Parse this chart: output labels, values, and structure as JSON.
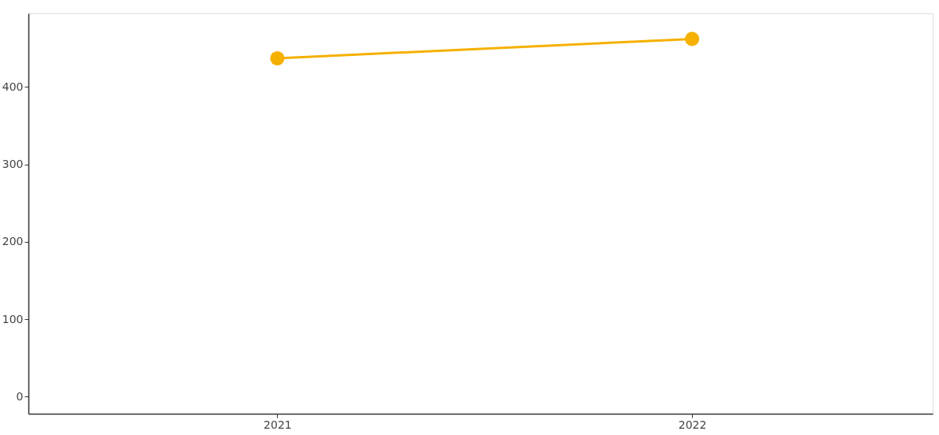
{
  "chart_data": {
    "type": "line",
    "categories": [
      "2021",
      "2022"
    ],
    "series": [
      {
        "color": "#f5b000",
        "values": [
          437,
          462
        ]
      }
    ],
    "ylim": [
      -22,
      495
    ],
    "yticks": [
      0,
      100,
      200,
      300,
      400
    ],
    "marker": "circle",
    "line_style": "solid",
    "grid": false
  }
}
